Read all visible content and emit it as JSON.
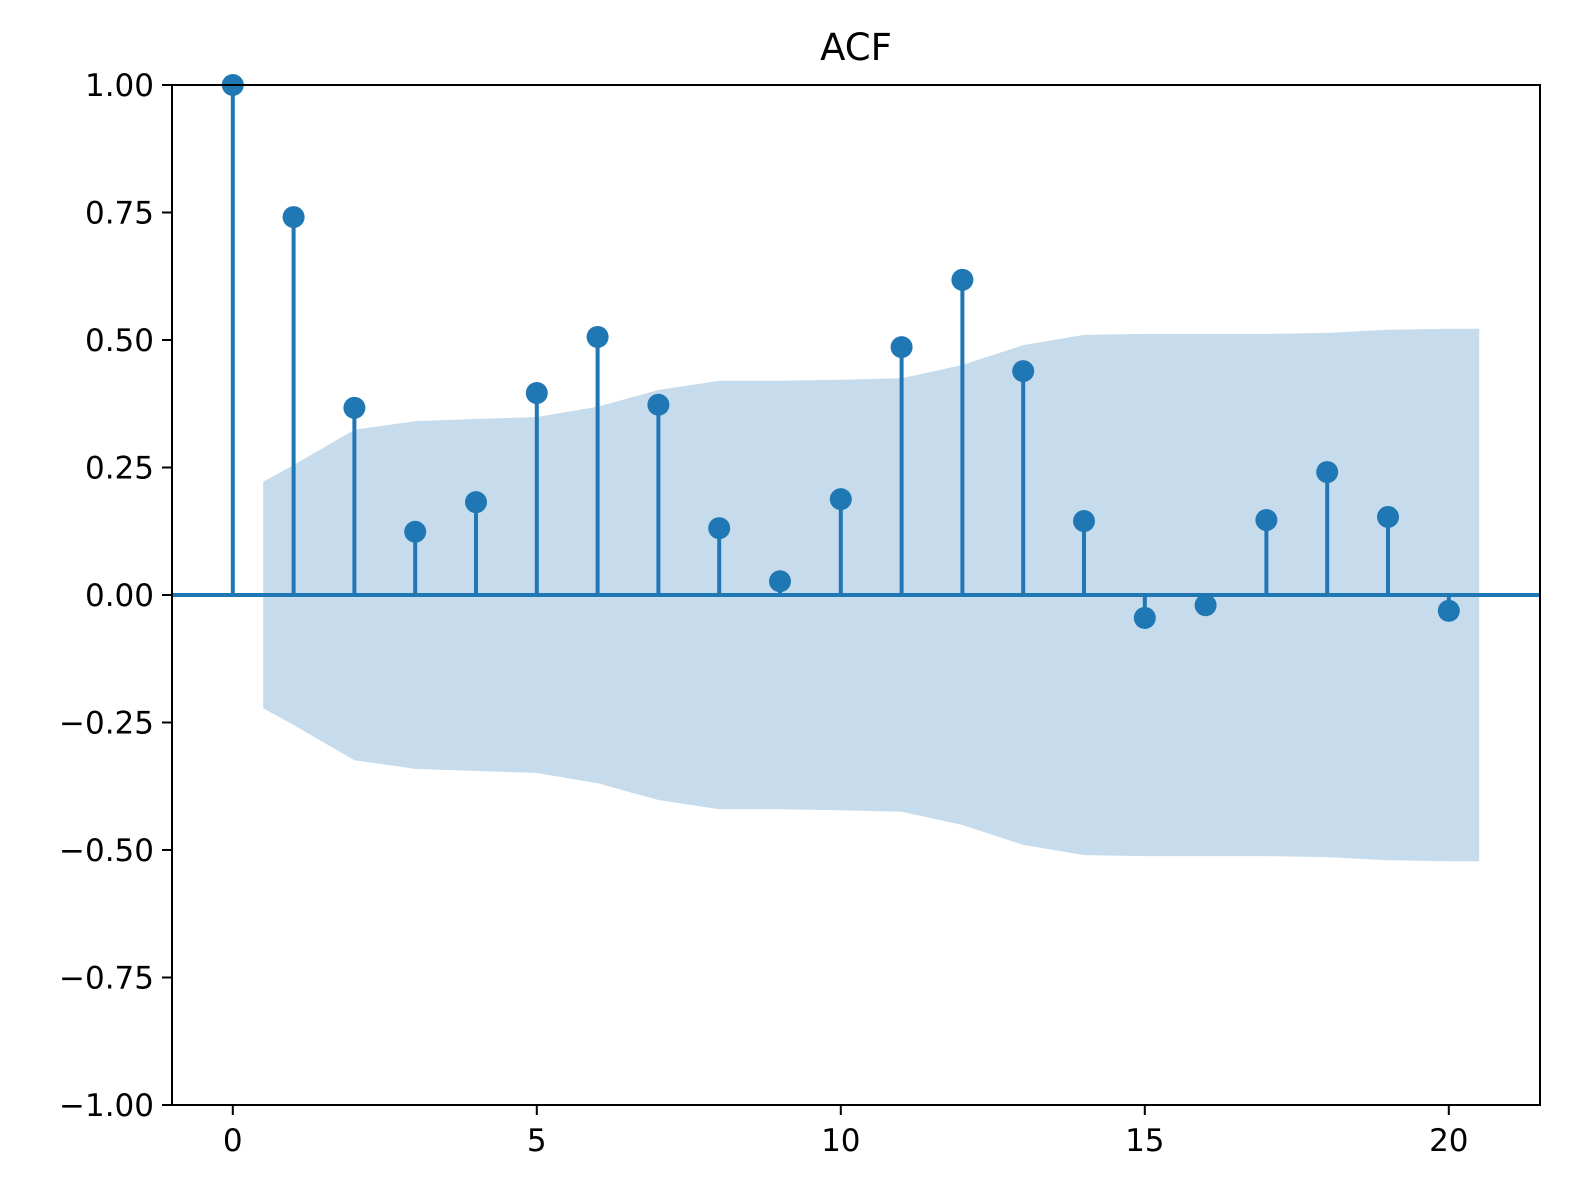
{
  "chart_data": {
    "type": "stem",
    "title": "ACF",
    "xlabel": "",
    "ylabel": "",
    "xlim": [
      -1,
      21.5
    ],
    "ylim": [
      -1,
      1
    ],
    "x_ticks": [
      "0",
      "5",
      "10",
      "15",
      "20"
    ],
    "y_ticks": [
      "1.00",
      "0.75",
      "0.50",
      "0.25",
      "0.00",
      "−0.25",
      "−0.50",
      "−0.75",
      "−1.00"
    ],
    "grid": false,
    "colors": {
      "stem": "#1f77b4",
      "band": "#c6dcec"
    },
    "lags": [
      0,
      1,
      2,
      3,
      4,
      5,
      6,
      7,
      8,
      9,
      10,
      11,
      12,
      13,
      14,
      15,
      16,
      17,
      18,
      19,
      20
    ],
    "values": [
      1.0,
      0.741,
      0.367,
      0.124,
      0.182,
      0.396,
      0.506,
      0.373,
      0.131,
      0.027,
      0.188,
      0.486,
      0.618,
      0.439,
      0.145,
      -0.045,
      -0.02,
      0.147,
      0.241,
      0.153,
      -0.031
    ],
    "confidence_band": {
      "x": [
        0.5,
        1,
        2,
        3,
        4,
        5,
        6,
        7,
        8,
        9,
        10,
        11,
        12,
        13,
        14,
        15,
        16,
        17,
        18,
        19,
        20,
        20.5
      ],
      "upper": [
        0.222,
        0.255,
        0.324,
        0.341,
        0.345,
        0.349,
        0.369,
        0.402,
        0.42,
        0.42,
        0.422,
        0.425,
        0.451,
        0.49,
        0.51,
        0.512,
        0.512,
        0.512,
        0.514,
        0.52,
        0.522,
        0.522
      ]
    }
  }
}
